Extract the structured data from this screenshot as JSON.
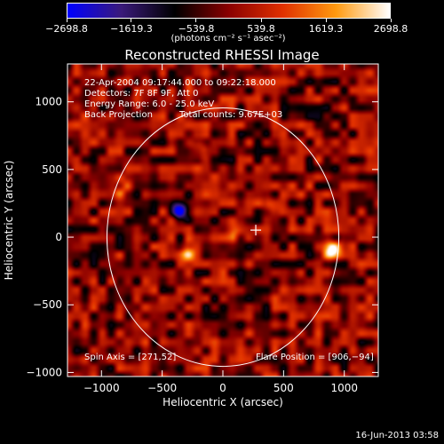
{
  "chart_data": {
    "type": "heatmap",
    "title": "Reconstructed RHESSI Image",
    "xlabel": "Heliocentric X (arcsec)",
    "ylabel": "Heliocentric Y (arcsec)",
    "xlim": [
      -1280,
      1280
    ],
    "ylim": [
      -1030,
      1280
    ],
    "xticks": [
      -1000,
      -500,
      0,
      500,
      1000
    ],
    "xtick_labels": [
      "−1000",
      "−500",
      "0",
      "500",
      "1000"
    ],
    "yticks": [
      -1000,
      -500,
      0,
      500,
      1000
    ],
    "ytick_labels": [
      "−1000",
      "−500",
      "0",
      "500",
      "1000"
    ],
    "colorbar": {
      "ticks": [
        -2698.8,
        -1619.3,
        -539.8,
        539.8,
        1619.3,
        2698.8
      ],
      "tick_labels": [
        "−2698.8",
        "−1619.3",
        "−539.8",
        "539.8",
        "1619.3",
        "2698.8"
      ],
      "unit_label": "(photons cm⁻² s⁻¹ asec⁻²)",
      "range": [
        -2698.8,
        2698.8
      ]
    },
    "annotations": [
      "22-Apr-2004 09:17:44.000 to 09:22:18.000",
      "Detectors: 7F 8F 9F, Att 0",
      "Energy Range: 6.0 - 25.0 keV",
      "Back Projection",
      "Total counts: 9.67E+03"
    ],
    "spin_axis_label": "Spin Axis = [271,52]",
    "flare_position_label": "Flare Position = [906,−94]",
    "solar_disk": {
      "center": [
        0,
        0
      ],
      "radius": 955
    },
    "spin_axis": [
      271,
      52
    ],
    "sources": [
      {
        "x": 906,
        "y": -94,
        "value": 2698.8
      },
      {
        "x": -360,
        "y": 200,
        "value": -2698.8
      },
      {
        "x": -290,
        "y": -120,
        "value": 1600
      },
      {
        "x": 120,
        "y": 40,
        "value": 1200
      },
      {
        "x": 420,
        "y": 230,
        "value": 1100
      },
      {
        "x": -200,
        "y": 650,
        "value": 1300
      },
      {
        "x": -840,
        "y": 370,
        "value": 1100
      }
    ]
  },
  "footer_date": "16-Jun-2013 03:58",
  "colors": {
    "background": "#000000",
    "axes": "#ffffff",
    "colormap": [
      "#0000ff",
      "#3a1a7a",
      "#000000",
      "#8a0000",
      "#e03000",
      "#ff9a10",
      "#ffffff"
    ]
  }
}
